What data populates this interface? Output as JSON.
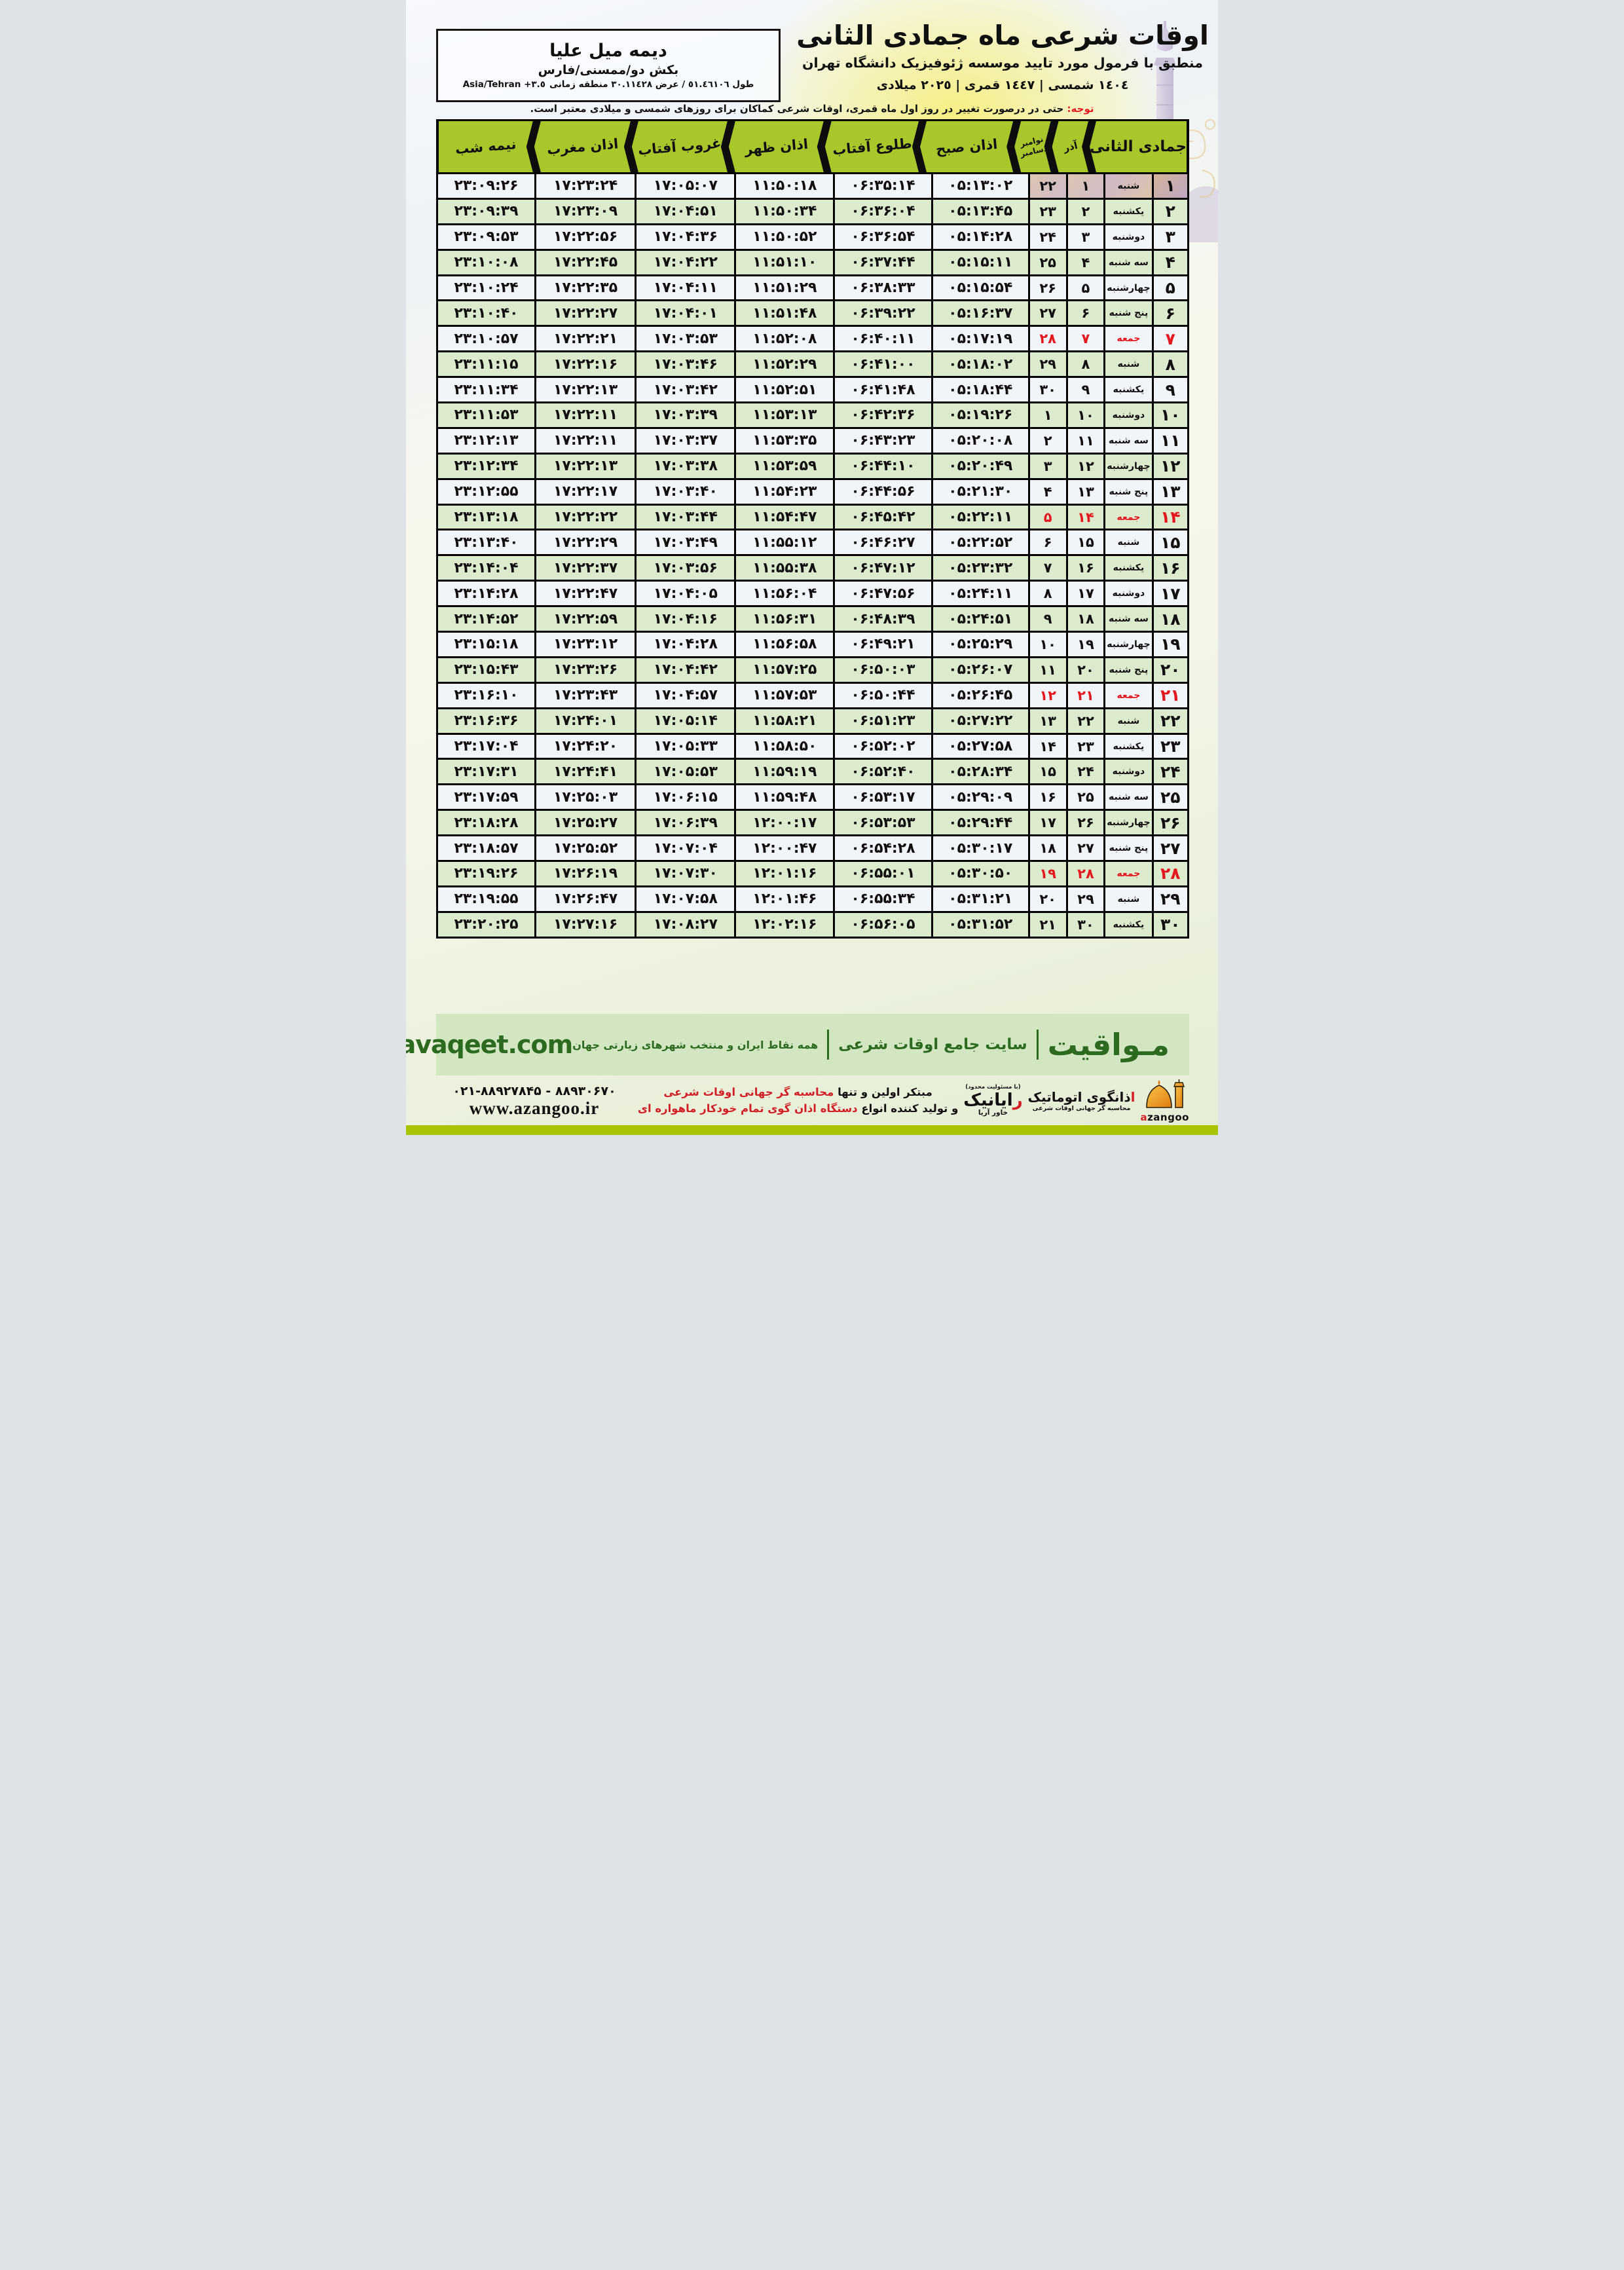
{
  "location": {
    "name": "دیمه میل علیا",
    "region": "بکش دو/ممسنی/فارس",
    "coords": "طول ٥١.٤٦١٠٦ / عرض ٣٠.١١٤٢٨ منطقه زمانی",
    "timezone": "Asia/Tehran +٣.٥"
  },
  "header": {
    "title": "اوقات شرعی ماه جمادی الثانی",
    "subtitle": "منطبق با فرمول مورد تایید موسسه ژئوفیزیک دانشگاه تهران",
    "years": "١٤٠٤ شمسی | ١٤٤٧ قمری | ٢٠٢٥ میلادی"
  },
  "notice": {
    "label": "توجه:",
    "text": "حتی در درصورت تغییر در روز اول ماه قمری، اوقات شرعی کماکان برای روزهای شمسی و میلادی معتبر است."
  },
  "table": {
    "headers": {
      "month_group": "جمادی الثانی",
      "azar": "آذر",
      "nov": "نوامبر",
      "dec": "دسامبر",
      "sobh": "اذان صبح",
      "tolu": "طلوع آفتاب",
      "zohr": "اذان ظهر",
      "ghorub": "غروب آفتاب",
      "maghreb": "اذان مغرب",
      "nimeshab": "نیمه شب"
    },
    "rows": [
      {
        "day": "۱",
        "weekday": "شنبه",
        "azar": "۱",
        "miladi": "۲۲",
        "sobh": "۰۵:۱۳:۰۲",
        "tolu": "۰۶:۳۵:۱۴",
        "zohr": "۱۱:۵۰:۱۸",
        "ghorub": "۱۷:۰۵:۰۷",
        "maghreb": "۱۷:۲۳:۲۴",
        "nimeshab": "۲۳:۰۹:۲۶",
        "friday": false
      },
      {
        "day": "۲",
        "weekday": "یکشنبه",
        "azar": "۲",
        "miladi": "۲۳",
        "sobh": "۰۵:۱۳:۴۵",
        "tolu": "۰۶:۳۶:۰۴",
        "zohr": "۱۱:۵۰:۳۴",
        "ghorub": "۱۷:۰۴:۵۱",
        "maghreb": "۱۷:۲۳:۰۹",
        "nimeshab": "۲۳:۰۹:۳۹",
        "friday": false
      },
      {
        "day": "۳",
        "weekday": "دوشنبه",
        "azar": "۳",
        "miladi": "۲۴",
        "sobh": "۰۵:۱۴:۲۸",
        "tolu": "۰۶:۳۶:۵۴",
        "zohr": "۱۱:۵۰:۵۲",
        "ghorub": "۱۷:۰۴:۳۶",
        "maghreb": "۱۷:۲۲:۵۶",
        "nimeshab": "۲۳:۰۹:۵۳",
        "friday": false
      },
      {
        "day": "۴",
        "weekday": "سه شنبه",
        "azar": "۴",
        "miladi": "۲۵",
        "sobh": "۰۵:۱۵:۱۱",
        "tolu": "۰۶:۳۷:۴۴",
        "zohr": "۱۱:۵۱:۱۰",
        "ghorub": "۱۷:۰۴:۲۲",
        "maghreb": "۱۷:۲۲:۴۵",
        "nimeshab": "۲۳:۱۰:۰۸",
        "friday": false
      },
      {
        "day": "۵",
        "weekday": "چهارشنبه",
        "azar": "۵",
        "miladi": "۲۶",
        "sobh": "۰۵:۱۵:۵۴",
        "tolu": "۰۶:۳۸:۳۳",
        "zohr": "۱۱:۵۱:۲۹",
        "ghorub": "۱۷:۰۴:۱۱",
        "maghreb": "۱۷:۲۲:۳۵",
        "nimeshab": "۲۳:۱۰:۲۴",
        "friday": false
      },
      {
        "day": "۶",
        "weekday": "پنج شنبه",
        "azar": "۶",
        "miladi": "۲۷",
        "sobh": "۰۵:۱۶:۳۷",
        "tolu": "۰۶:۳۹:۲۲",
        "zohr": "۱۱:۵۱:۴۸",
        "ghorub": "۱۷:۰۴:۰۱",
        "maghreb": "۱۷:۲۲:۲۷",
        "nimeshab": "۲۳:۱۰:۴۰",
        "friday": false
      },
      {
        "day": "۷",
        "weekday": "جمعه",
        "azar": "۷",
        "miladi": "۲۸",
        "sobh": "۰۵:۱۷:۱۹",
        "tolu": "۰۶:۴۰:۱۱",
        "zohr": "۱۱:۵۲:۰۸",
        "ghorub": "۱۷:۰۳:۵۳",
        "maghreb": "۱۷:۲۲:۲۱",
        "nimeshab": "۲۳:۱۰:۵۷",
        "friday": true
      },
      {
        "day": "۸",
        "weekday": "شنبه",
        "azar": "۸",
        "miladi": "۲۹",
        "sobh": "۰۵:۱۸:۰۲",
        "tolu": "۰۶:۴۱:۰۰",
        "zohr": "۱۱:۵۲:۲۹",
        "ghorub": "۱۷:۰۳:۴۶",
        "maghreb": "۱۷:۲۲:۱۶",
        "nimeshab": "۲۳:۱۱:۱۵",
        "friday": false
      },
      {
        "day": "۹",
        "weekday": "یکشنبه",
        "azar": "۹",
        "miladi": "۳۰",
        "sobh": "۰۵:۱۸:۴۴",
        "tolu": "۰۶:۴۱:۴۸",
        "zohr": "۱۱:۵۲:۵۱",
        "ghorub": "۱۷:۰۳:۴۲",
        "maghreb": "۱۷:۲۲:۱۳",
        "nimeshab": "۲۳:۱۱:۳۴",
        "friday": false
      },
      {
        "day": "۱۰",
        "weekday": "دوشنبه",
        "azar": "۱۰",
        "miladi": "۱",
        "sobh": "۰۵:۱۹:۲۶",
        "tolu": "۰۶:۴۲:۳۶",
        "zohr": "۱۱:۵۳:۱۳",
        "ghorub": "۱۷:۰۳:۳۹",
        "maghreb": "۱۷:۲۲:۱۱",
        "nimeshab": "۲۳:۱۱:۵۳",
        "friday": false
      },
      {
        "day": "۱۱",
        "weekday": "سه شنبه",
        "azar": "۱۱",
        "miladi": "۲",
        "sobh": "۰۵:۲۰:۰۸",
        "tolu": "۰۶:۴۳:۲۳",
        "zohr": "۱۱:۵۳:۳۵",
        "ghorub": "۱۷:۰۳:۳۷",
        "maghreb": "۱۷:۲۲:۱۱",
        "nimeshab": "۲۳:۱۲:۱۳",
        "friday": false
      },
      {
        "day": "۱۲",
        "weekday": "چهارشنبه",
        "azar": "۱۲",
        "miladi": "۳",
        "sobh": "۰۵:۲۰:۴۹",
        "tolu": "۰۶:۴۴:۱۰",
        "zohr": "۱۱:۵۳:۵۹",
        "ghorub": "۱۷:۰۳:۳۸",
        "maghreb": "۱۷:۲۲:۱۳",
        "nimeshab": "۲۳:۱۲:۳۴",
        "friday": false
      },
      {
        "day": "۱۳",
        "weekday": "پنج شنبه",
        "azar": "۱۳",
        "miladi": "۴",
        "sobh": "۰۵:۲۱:۳۰",
        "tolu": "۰۶:۴۴:۵۶",
        "zohr": "۱۱:۵۴:۲۳",
        "ghorub": "۱۷:۰۳:۴۰",
        "maghreb": "۱۷:۲۲:۱۷",
        "nimeshab": "۲۳:۱۲:۵۵",
        "friday": false
      },
      {
        "day": "۱۴",
        "weekday": "جمعه",
        "azar": "۱۴",
        "miladi": "۵",
        "sobh": "۰۵:۲۲:۱۱",
        "tolu": "۰۶:۴۵:۴۲",
        "zohr": "۱۱:۵۴:۴۷",
        "ghorub": "۱۷:۰۳:۴۴",
        "maghreb": "۱۷:۲۲:۲۲",
        "nimeshab": "۲۳:۱۳:۱۸",
        "friday": true
      },
      {
        "day": "۱۵",
        "weekday": "شنبه",
        "azar": "۱۵",
        "miladi": "۶",
        "sobh": "۰۵:۲۲:۵۲",
        "tolu": "۰۶:۴۶:۲۷",
        "zohr": "۱۱:۵۵:۱۲",
        "ghorub": "۱۷:۰۳:۴۹",
        "maghreb": "۱۷:۲۲:۲۹",
        "nimeshab": "۲۳:۱۳:۴۰",
        "friday": false
      },
      {
        "day": "۱۶",
        "weekday": "یکشنبه",
        "azar": "۱۶",
        "miladi": "۷",
        "sobh": "۰۵:۲۳:۳۲",
        "tolu": "۰۶:۴۷:۱۲",
        "zohr": "۱۱:۵۵:۳۸",
        "ghorub": "۱۷:۰۳:۵۶",
        "maghreb": "۱۷:۲۲:۳۷",
        "nimeshab": "۲۳:۱۴:۰۴",
        "friday": false
      },
      {
        "day": "۱۷",
        "weekday": "دوشنبه",
        "azar": "۱۷",
        "miladi": "۸",
        "sobh": "۰۵:۲۴:۱۱",
        "tolu": "۰۶:۴۷:۵۶",
        "zohr": "۱۱:۵۶:۰۴",
        "ghorub": "۱۷:۰۴:۰۵",
        "maghreb": "۱۷:۲۲:۴۷",
        "nimeshab": "۲۳:۱۴:۲۸",
        "friday": false
      },
      {
        "day": "۱۸",
        "weekday": "سه شنبه",
        "azar": "۱۸",
        "miladi": "۹",
        "sobh": "۰۵:۲۴:۵۱",
        "tolu": "۰۶:۴۸:۳۹",
        "zohr": "۱۱:۵۶:۳۱",
        "ghorub": "۱۷:۰۴:۱۶",
        "maghreb": "۱۷:۲۲:۵۹",
        "nimeshab": "۲۳:۱۴:۵۲",
        "friday": false
      },
      {
        "day": "۱۹",
        "weekday": "چهارشنبه",
        "azar": "۱۹",
        "miladi": "۱۰",
        "sobh": "۰۵:۲۵:۲۹",
        "tolu": "۰۶:۴۹:۲۱",
        "zohr": "۱۱:۵۶:۵۸",
        "ghorub": "۱۷:۰۴:۲۸",
        "maghreb": "۱۷:۲۳:۱۲",
        "nimeshab": "۲۳:۱۵:۱۸",
        "friday": false
      },
      {
        "day": "۲۰",
        "weekday": "پنج شنبه",
        "azar": "۲۰",
        "miladi": "۱۱",
        "sobh": "۰۵:۲۶:۰۷",
        "tolu": "۰۶:۵۰:۰۳",
        "zohr": "۱۱:۵۷:۲۵",
        "ghorub": "۱۷:۰۴:۴۲",
        "maghreb": "۱۷:۲۳:۲۶",
        "nimeshab": "۲۳:۱۵:۴۳",
        "friday": false
      },
      {
        "day": "۲۱",
        "weekday": "جمعه",
        "azar": "۲۱",
        "miladi": "۱۲",
        "sobh": "۰۵:۲۶:۴۵",
        "tolu": "۰۶:۵۰:۴۴",
        "zohr": "۱۱:۵۷:۵۳",
        "ghorub": "۱۷:۰۴:۵۷",
        "maghreb": "۱۷:۲۳:۴۳",
        "nimeshab": "۲۳:۱۶:۱۰",
        "friday": true
      },
      {
        "day": "۲۲",
        "weekday": "شنبه",
        "azar": "۲۲",
        "miladi": "۱۳",
        "sobh": "۰۵:۲۷:۲۲",
        "tolu": "۰۶:۵۱:۲۳",
        "zohr": "۱۱:۵۸:۲۱",
        "ghorub": "۱۷:۰۵:۱۴",
        "maghreb": "۱۷:۲۴:۰۱",
        "nimeshab": "۲۳:۱۶:۳۶",
        "friday": false
      },
      {
        "day": "۲۳",
        "weekday": "یکشنبه",
        "azar": "۲۳",
        "miladi": "۱۴",
        "sobh": "۰۵:۲۷:۵۸",
        "tolu": "۰۶:۵۲:۰۲",
        "zohr": "۱۱:۵۸:۵۰",
        "ghorub": "۱۷:۰۵:۳۳",
        "maghreb": "۱۷:۲۴:۲۰",
        "nimeshab": "۲۳:۱۷:۰۴",
        "friday": false
      },
      {
        "day": "۲۴",
        "weekday": "دوشنبه",
        "azar": "۲۴",
        "miladi": "۱۵",
        "sobh": "۰۵:۲۸:۳۴",
        "tolu": "۰۶:۵۲:۴۰",
        "zohr": "۱۱:۵۹:۱۹",
        "ghorub": "۱۷:۰۵:۵۳",
        "maghreb": "۱۷:۲۴:۴۱",
        "nimeshab": "۲۳:۱۷:۳۱",
        "friday": false
      },
      {
        "day": "۲۵",
        "weekday": "سه شنبه",
        "azar": "۲۵",
        "miladi": "۱۶",
        "sobh": "۰۵:۲۹:۰۹",
        "tolu": "۰۶:۵۳:۱۷",
        "zohr": "۱۱:۵۹:۴۸",
        "ghorub": "۱۷:۰۶:۱۵",
        "maghreb": "۱۷:۲۵:۰۳",
        "nimeshab": "۲۳:۱۷:۵۹",
        "friday": false
      },
      {
        "day": "۲۶",
        "weekday": "چهارشنبه",
        "azar": "۲۶",
        "miladi": "۱۷",
        "sobh": "۰۵:۲۹:۴۴",
        "tolu": "۰۶:۵۳:۵۳",
        "zohr": "۱۲:۰۰:۱۷",
        "ghorub": "۱۷:۰۶:۳۹",
        "maghreb": "۱۷:۲۵:۲۷",
        "nimeshab": "۲۳:۱۸:۲۸",
        "friday": false
      },
      {
        "day": "۲۷",
        "weekday": "پنج شنبه",
        "azar": "۲۷",
        "miladi": "۱۸",
        "sobh": "۰۵:۳۰:۱۷",
        "tolu": "۰۶:۵۴:۲۸",
        "zohr": "۱۲:۰۰:۴۷",
        "ghorub": "۱۷:۰۷:۰۴",
        "maghreb": "۱۷:۲۵:۵۲",
        "nimeshab": "۲۳:۱۸:۵۷",
        "friday": false
      },
      {
        "day": "۲۸",
        "weekday": "جمعه",
        "azar": "۲۸",
        "miladi": "۱۹",
        "sobh": "۰۵:۳۰:۵۰",
        "tolu": "۰۶:۵۵:۰۱",
        "zohr": "۱۲:۰۱:۱۶",
        "ghorub": "۱۷:۰۷:۳۰",
        "maghreb": "۱۷:۲۶:۱۹",
        "nimeshab": "۲۳:۱۹:۲۶",
        "friday": true
      },
      {
        "day": "۲۹",
        "weekday": "شنبه",
        "azar": "۲۹",
        "miladi": "۲۰",
        "sobh": "۰۵:۳۱:۲۱",
        "tolu": "۰۶:۵۵:۳۴",
        "zohr": "۱۲:۰۱:۴۶",
        "ghorub": "۱۷:۰۷:۵۸",
        "maghreb": "۱۷:۲۶:۴۷",
        "nimeshab": "۲۳:۱۹:۵۵",
        "friday": false
      },
      {
        "day": "۳۰",
        "weekday": "یکشنبه",
        "azar": "۳۰",
        "miladi": "۲۱",
        "sobh": "۰۵:۳۱:۵۲",
        "tolu": "۰۶:۵۶:۰۵",
        "zohr": "۱۲:۰۲:۱۶",
        "ghorub": "۱۷:۰۸:۲۷",
        "maghreb": "۱۷:۲۷:۱۶",
        "nimeshab": "۲۳:۲۰:۲۵",
        "friday": false
      }
    ]
  },
  "footer": {
    "brand": "مـواقیت",
    "desc_bold": "سایت جامع اوقات شرعی",
    "desc": "همه نقاط ایران و منتخب شهرهای زیارتی جهان",
    "site_en": "mavaqeet.com",
    "phones": "۰۲۱-۸۸۹۲۷۸۴۵ - ۸۸۹۳۰۶۷۰",
    "website": "www.azangoo.ir",
    "tagline_black1": "مبتکر اولین و تنها",
    "tagline_red1": "محاسبه گر جهانی اوقات شرعی",
    "tagline_black2": "و تولید کننده انواع",
    "tagline_red2": "دستگاه اذان گوی تمام خودکار ماهواره ای",
    "rayanik_note": "(با مسئولیت محدود)",
    "rayanik_r": "ر",
    "rayanik_rest": "ایانیک",
    "rayanik_sub": "خاور آریا",
    "azangoo_a": "ا",
    "azangoo_rest": "ذانگوی اتوماتیک",
    "azangoo_sub": "محاسبه گر جهانی اوقات شرعی",
    "azangoo_en_a": "a",
    "azangoo_en_rest": "zangoo"
  }
}
